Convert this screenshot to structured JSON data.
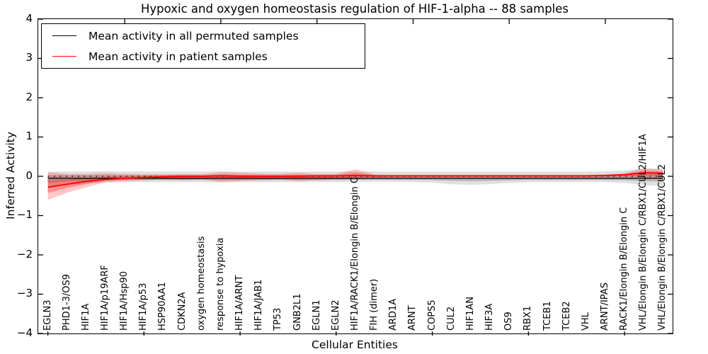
{
  "figure": {
    "background": "#ffffff"
  },
  "chart_data": {
    "type": "line",
    "title": "Hypoxic and oxygen homeostasis regulation of HIF-1-alpha -- 88 samples",
    "xlabel": "Cellular Entities",
    "ylabel": "Inferred Activity",
    "ylim": [
      -4,
      4
    ],
    "yticks": [
      4,
      3,
      2,
      1,
      0,
      -1,
      -2,
      -3,
      -4
    ],
    "grid": false,
    "legend_position": "upper left",
    "zero_line": {
      "y": 0,
      "style": "dotted",
      "color": "#000000"
    },
    "categories": [
      "EGLN3",
      "PHD1-3/OS9",
      "HIF1A",
      "HIF1A/p19ARF",
      "HIF1A/Hsp90",
      "HIF1A/p53",
      "HSP90AA1",
      "CDKN2A",
      "oxygen homeostasis",
      "response to hypoxia",
      "HIF1A/ARNT",
      "HIF1A/JAB1",
      "TP53",
      "GNB2L1",
      "EGLN1",
      "EGLN2",
      "HIF1A/RACK1/Elongin B/Elongin C",
      "FIH (dimer)",
      "ARD1A",
      "ARNT",
      "COPS5",
      "CUL2",
      "HIF1AN",
      "HIF3A",
      "OS9",
      "RBX1",
      "TCEB1",
      "TCEB2",
      "VHL",
      "ARNT/IPAS",
      "RACK1/Elongin B/Elongin C",
      "VHL/Elongin B/Elongin C/RBX1/CUL2/HIF1A",
      "VHL/Elongin B/Elongin C/RBX1/CUL2"
    ],
    "series": [
      {
        "name": "Mean activity in all permuted samples",
        "color": "#000000",
        "line_width": 1.3,
        "band_color": "#000000",
        "band_alpha": 0.12,
        "values": [
          -0.05,
          -0.05,
          -0.05,
          -0.05,
          -0.05,
          -0.05,
          -0.05,
          -0.05,
          -0.05,
          -0.05,
          -0.05,
          -0.05,
          -0.05,
          -0.05,
          -0.05,
          -0.05,
          -0.05,
          -0.05,
          -0.05,
          -0.05,
          -0.05,
          -0.05,
          -0.05,
          -0.05,
          -0.05,
          -0.05,
          -0.05,
          -0.05,
          -0.05,
          -0.05,
          -0.05,
          -0.05,
          -0.05
        ],
        "band_upper": [
          0.12,
          0.12,
          0.12,
          0.13,
          0.12,
          0.12,
          0.12,
          0.12,
          0.12,
          0.13,
          0.12,
          0.12,
          0.12,
          0.12,
          0.12,
          0.12,
          0.12,
          0.12,
          0.12,
          0.12,
          0.12,
          0.12,
          0.12,
          0.12,
          0.12,
          0.12,
          0.12,
          0.12,
          0.12,
          0.13,
          0.15,
          0.2,
          0.2
        ],
        "band_lower": [
          -0.3,
          -0.22,
          -0.18,
          -0.16,
          -0.15,
          -0.15,
          -0.15,
          -0.15,
          -0.15,
          -0.16,
          -0.15,
          -0.15,
          -0.15,
          -0.15,
          -0.15,
          -0.15,
          -0.14,
          -0.14,
          -0.14,
          -0.15,
          -0.16,
          -0.2,
          -0.22,
          -0.2,
          -0.17,
          -0.15,
          -0.15,
          -0.15,
          -0.15,
          -0.15,
          -0.17,
          -0.22,
          -0.25
        ]
      },
      {
        "name": "Mean activity in patient samples",
        "color": "#ff0000",
        "line_width": 1.8,
        "band_color": "#ff0000",
        "band_alpha": 0.22,
        "values": [
          -0.28,
          -0.2,
          -0.13,
          -0.08,
          -0.05,
          -0.03,
          -0.01,
          0.0,
          0.0,
          0.01,
          0.0,
          0.0,
          0.0,
          0.0,
          0.01,
          0.01,
          0.02,
          0.01,
          0.01,
          0.01,
          0.01,
          0.01,
          0.01,
          0.01,
          0.01,
          0.01,
          0.01,
          0.01,
          0.01,
          0.02,
          0.04,
          0.09,
          0.08
        ],
        "band_upper": [
          0.1,
          0.06,
          0.06,
          0.08,
          0.06,
          0.05,
          0.05,
          0.06,
          0.05,
          0.1,
          0.09,
          0.07,
          0.06,
          0.09,
          0.06,
          0.06,
          0.18,
          0.05,
          0.04,
          0.04,
          0.04,
          0.04,
          0.04,
          0.04,
          0.04,
          0.04,
          0.04,
          0.04,
          0.04,
          0.05,
          0.08,
          0.2,
          0.16
        ],
        "band_lower": [
          -0.6,
          -0.42,
          -0.28,
          -0.15,
          -0.12,
          -0.1,
          -0.08,
          -0.1,
          -0.08,
          -0.14,
          -0.12,
          -0.1,
          -0.08,
          -0.12,
          -0.1,
          -0.08,
          -0.08,
          -0.04,
          -0.03,
          -0.03,
          -0.03,
          -0.03,
          -0.03,
          -0.03,
          -0.03,
          -0.03,
          -0.03,
          -0.03,
          -0.03,
          -0.03,
          -0.04,
          -0.06,
          -0.05
        ]
      }
    ]
  },
  "legend": {
    "items": [
      {
        "label": "Mean activity in all permuted samples",
        "color": "#000000"
      },
      {
        "label": "Mean activity in patient samples",
        "color": "#ff0000"
      }
    ]
  }
}
